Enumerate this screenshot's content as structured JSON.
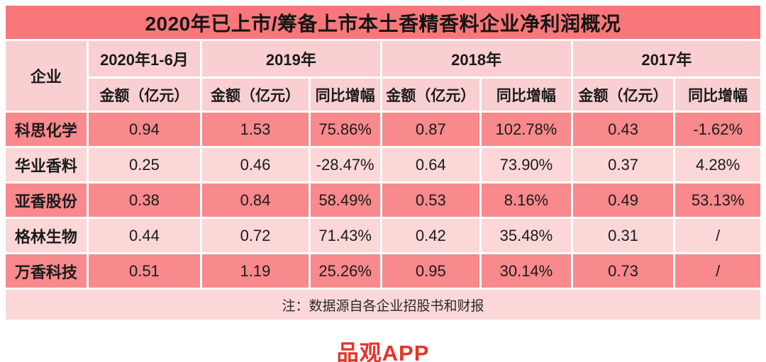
{
  "title": "2020年已上市/筹备上市本土香精香料企业净利润概况",
  "colors": {
    "title_bg": "#F9767A",
    "header_bg": "#F9CFD1",
    "dark_row_bg": "#F8898C",
    "light_row_bg": "#FBD7D7",
    "brand_red": "#E6332A"
  },
  "chart_data": {
    "type": "table",
    "title": "2020年已上市/筹备上市本土香精香料企业净利润概况",
    "corner_header": "企业",
    "year_groups": [
      {
        "label": "2020年1-6月",
        "subs": [
          "金额（亿元）"
        ]
      },
      {
        "label": "2019年",
        "subs": [
          "金额（亿元）",
          "同比增幅"
        ]
      },
      {
        "label": "2018年",
        "subs": [
          "金额（亿元）",
          "同比增幅"
        ]
      },
      {
        "label": "2017年",
        "subs": [
          "金额（亿元）",
          "同比增幅"
        ]
      }
    ],
    "rows": [
      {
        "name": "科思化学",
        "values": [
          "0.94",
          "1.53",
          "75.86%",
          "0.87",
          "102.78%",
          "0.43",
          "-1.62%"
        ]
      },
      {
        "name": "华业香料",
        "values": [
          "0.25",
          "0.46",
          "-28.47%",
          "0.64",
          "73.90%",
          "0.37",
          "4.28%"
        ]
      },
      {
        "name": "亚香股份",
        "values": [
          "0.38",
          "0.84",
          "58.49%",
          "0.53",
          "8.16%",
          "0.49",
          "53.13%"
        ]
      },
      {
        "name": "格林生物",
        "values": [
          "0.44",
          "0.72",
          "71.43%",
          "0.42",
          "35.48%",
          "0.31",
          "/"
        ]
      },
      {
        "name": "万香科技",
        "values": [
          "0.51",
          "1.19",
          "25.26%",
          "0.95",
          "30.14%",
          "0.73",
          "/"
        ]
      }
    ],
    "note": "注：数据源自各企业招股书和财报"
  },
  "footer": {
    "brand": "品观APP"
  }
}
